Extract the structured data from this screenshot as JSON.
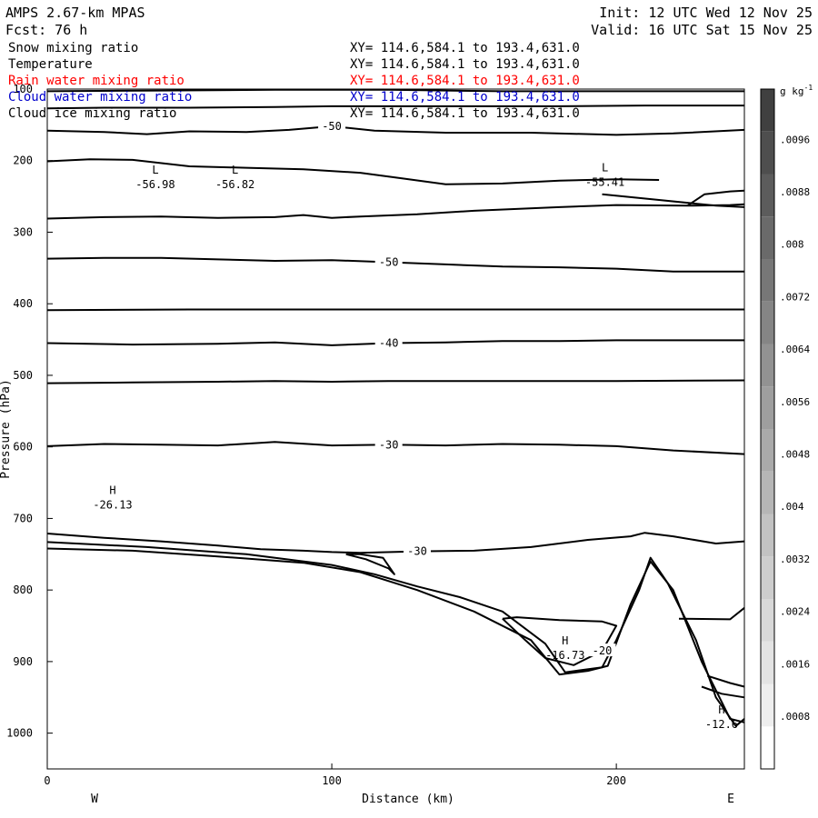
{
  "header": {
    "model": "AMPS 2.67-km MPAS",
    "fcst": "Fcst:   76 h",
    "init": "Init: 12 UTC Wed 12 Nov 25",
    "valid": "Valid: 16 UTC Sat 15 Nov 25"
  },
  "variables": [
    {
      "name": "Snow mixing ratio",
      "xy": "XY= 114.6,584.1 to 193.4,631.0",
      "color": "#000000"
    },
    {
      "name": "Temperature",
      "xy": "XY= 114.6,584.1 to 193.4,631.0",
      "color": "#000000"
    },
    {
      "name": "Rain water mixing ratio",
      "xy": "XY= 114.6,584.1 to 193.4,631.0",
      "color": "#ff0000"
    },
    {
      "name": "Cloud water mixing ratio",
      "xy": "XY= 114.6,584.1 to 193.4,631.0",
      "color": "#0000cc"
    },
    {
      "name": "Cloud ice mixing ratio",
      "xy": "XY= 114.6,584.1 to 193.4,631.0",
      "color": "#000000"
    }
  ],
  "chart_data": {
    "type": "line",
    "xlabel": "Distance (km)",
    "ylabel": "Pressure (hPa)",
    "xlim": [
      0,
      245
    ],
    "ylim": [
      1050,
      100
    ],
    "x_ticks": [
      "0",
      "100",
      "200"
    ],
    "y_ticks": [
      "100",
      "200",
      "300",
      "400",
      "500",
      "600",
      "700",
      "800",
      "900",
      "1000"
    ],
    "x_ends": {
      "left": "W",
      "right": "E"
    },
    "series": [
      {
        "label": "",
        "points": [
          [
            0,
            103
          ],
          [
            40,
            102
          ],
          [
            80,
            101
          ],
          [
            120,
            101
          ],
          [
            160,
            103
          ],
          [
            200,
            103
          ],
          [
            245,
            103
          ]
        ]
      },
      {
        "label": "",
        "points": [
          [
            0,
            127
          ],
          [
            20,
            126
          ],
          [
            50,
            126
          ],
          [
            80,
            125
          ],
          [
            100,
            124
          ],
          [
            120,
            124
          ],
          [
            150,
            124
          ],
          [
            180,
            124
          ],
          [
            210,
            123
          ],
          [
            245,
            123
          ]
        ]
      },
      {
        "label": "-50",
        "points": [
          [
            0,
            158
          ],
          [
            20,
            160
          ],
          [
            35,
            163
          ],
          [
            50,
            159
          ],
          [
            70,
            160
          ],
          [
            85,
            157
          ],
          [
            100,
            152
          ],
          [
            115,
            158
          ],
          [
            140,
            161
          ],
          [
            170,
            161
          ],
          [
            200,
            164
          ],
          [
            220,
            162
          ],
          [
            245,
            157
          ]
        ]
      },
      {
        "label": "",
        "points": [
          [
            0,
            201
          ],
          [
            15,
            198
          ],
          [
            30,
            199
          ],
          [
            50,
            208
          ],
          [
            70,
            210
          ],
          [
            90,
            212
          ],
          [
            110,
            217
          ],
          [
            125,
            225
          ],
          [
            140,
            233
          ],
          [
            160,
            232
          ],
          [
            180,
            228
          ],
          [
            200,
            226
          ],
          [
            215,
            227
          ]
        ]
      },
      {
        "label": "",
        "points": [
          [
            0,
            281
          ],
          [
            20,
            279
          ],
          [
            40,
            278
          ],
          [
            60,
            280
          ],
          [
            80,
            279
          ],
          [
            90,
            276
          ],
          [
            100,
            280
          ],
          [
            110,
            278
          ],
          [
            130,
            275
          ],
          [
            150,
            270
          ],
          [
            180,
            265
          ],
          [
            200,
            262
          ],
          [
            225,
            263
          ],
          [
            240,
            262
          ],
          [
            245,
            261
          ]
        ]
      },
      {
        "label": "",
        "points": [
          [
            195,
            247
          ],
          [
            215,
            255
          ],
          [
            235,
            263
          ],
          [
            245,
            265
          ]
        ]
      },
      {
        "label": "",
        "points": [
          [
            225,
            263
          ],
          [
            231,
            247
          ],
          [
            240,
            243
          ],
          [
            245,
            242
          ]
        ]
      },
      {
        "label": "-50",
        "points": [
          [
            0,
            337
          ],
          [
            20,
            336
          ],
          [
            40,
            336
          ],
          [
            60,
            338
          ],
          [
            80,
            340
          ],
          [
            100,
            339
          ],
          [
            120,
            342
          ],
          [
            140,
            345
          ],
          [
            160,
            348
          ],
          [
            180,
            349
          ],
          [
            200,
            351
          ],
          [
            220,
            355
          ],
          [
            245,
            355
          ]
        ]
      },
      {
        "label": "",
        "points": [
          [
            0,
            409
          ],
          [
            50,
            408
          ],
          [
            100,
            408
          ],
          [
            150,
            408
          ],
          [
            200,
            408
          ],
          [
            245,
            408
          ]
        ]
      },
      {
        "label": "-40",
        "points": [
          [
            0,
            455
          ],
          [
            30,
            457
          ],
          [
            60,
            456
          ],
          [
            80,
            454
          ],
          [
            100,
            458
          ],
          [
            120,
            455
          ],
          [
            140,
            454
          ],
          [
            160,
            452
          ],
          [
            180,
            452
          ],
          [
            200,
            451
          ],
          [
            245,
            451
          ]
        ]
      },
      {
        "label": "",
        "points": [
          [
            0,
            511
          ],
          [
            30,
            510
          ],
          [
            60,
            509
          ],
          [
            80,
            508
          ],
          [
            100,
            509
          ],
          [
            120,
            508
          ],
          [
            140,
            508
          ],
          [
            160,
            508
          ],
          [
            180,
            508
          ],
          [
            200,
            508
          ],
          [
            245,
            507
          ]
        ]
      },
      {
        "label": "-30",
        "points": [
          [
            0,
            599
          ],
          [
            20,
            596
          ],
          [
            40,
            597
          ],
          [
            60,
            598
          ],
          [
            80,
            593
          ],
          [
            100,
            598
          ],
          [
            120,
            597
          ],
          [
            140,
            598
          ],
          [
            160,
            596
          ],
          [
            180,
            597
          ],
          [
            200,
            599
          ],
          [
            220,
            605
          ],
          [
            245,
            610
          ]
        ]
      },
      {
        "label": "-30",
        "points": [
          [
            0,
            721
          ],
          [
            20,
            727
          ],
          [
            40,
            732
          ],
          [
            60,
            738
          ],
          [
            75,
            743
          ],
          [
            90,
            745
          ],
          [
            100,
            747
          ],
          [
            110,
            748
          ],
          [
            130,
            746
          ],
          [
            150,
            745
          ],
          [
            170,
            740
          ],
          [
            190,
            730
          ],
          [
            205,
            725
          ],
          [
            210,
            720
          ],
          [
            220,
            725
          ],
          [
            235,
            735
          ],
          [
            245,
            732
          ]
        ]
      },
      {
        "label": "",
        "points": [
          [
            0,
            742
          ],
          [
            30,
            745
          ],
          [
            60,
            753
          ],
          [
            90,
            762
          ],
          [
            110,
            775
          ],
          [
            130,
            800
          ],
          [
            150,
            830
          ],
          [
            170,
            870
          ],
          [
            180,
            918
          ],
          [
            190,
            913
          ],
          [
            197,
            906
          ],
          [
            205,
            820
          ],
          [
            212,
            760
          ],
          [
            220,
            800
          ],
          [
            230,
            900
          ],
          [
            240,
            980
          ],
          [
            245,
            985
          ]
        ]
      },
      {
        "label": "",
        "points": [
          [
            0,
            733
          ],
          [
            35,
            740
          ],
          [
            70,
            750
          ],
          [
            100,
            765
          ],
          [
            115,
            778
          ],
          [
            130,
            795
          ],
          [
            145,
            810
          ],
          [
            160,
            830
          ],
          [
            175,
            875
          ],
          [
            182,
            915
          ],
          [
            195,
            908
          ],
          [
            200,
            870
          ],
          [
            208,
            800
          ],
          [
            212,
            755
          ],
          [
            218,
            790
          ],
          [
            228,
            870
          ],
          [
            235,
            950
          ],
          [
            242,
            990
          ],
          [
            245,
            980
          ]
        ]
      },
      {
        "label": "",
        "points": [
          [
            105,
            750
          ],
          [
            110,
            750
          ],
          [
            118,
            755
          ],
          [
            122,
            778
          ],
          [
            120,
            770
          ],
          [
            112,
            757
          ],
          [
            105,
            750
          ]
        ]
      },
      {
        "label": "-20",
        "points": [
          [
            160,
            840
          ],
          [
            165,
            838
          ],
          [
            180,
            842
          ],
          [
            195,
            844
          ],
          [
            200,
            850
          ],
          [
            195,
            885
          ],
          [
            185,
            905
          ],
          [
            175,
            895
          ],
          [
            168,
            870
          ],
          [
            160,
            840
          ]
        ]
      },
      {
        "label": "",
        "points": [
          [
            222,
            840
          ],
          [
            240,
            841
          ],
          [
            245,
            825
          ]
        ]
      },
      {
        "label": "",
        "points": [
          [
            232,
            920
          ],
          [
            240,
            930
          ],
          [
            245,
            935
          ]
        ]
      },
      {
        "label": "",
        "points": [
          [
            230,
            935
          ],
          [
            237,
            945
          ],
          [
            245,
            950
          ]
        ]
      }
    ],
    "extrema": [
      {
        "type": "L",
        "value": "-56.98",
        "x": 38,
        "p": 228
      },
      {
        "type": "L",
        "value": "-56.82",
        "x": 66,
        "p": 228
      },
      {
        "type": "L",
        "value": "-55.41",
        "x": 196,
        "p": 225
      },
      {
        "type": "H",
        "value": "-26.13",
        "x": 23,
        "p": 676
      },
      {
        "type": "H",
        "value": "-16.73",
        "x": 182,
        "p": 886
      },
      {
        "type": "H",
        "value": "-12.6",
        "x": 237,
        "p": 983
      }
    ],
    "colorbar": {
      "unit": "g kg",
      "unit_exp": "-1",
      "labels": [
        ".0008",
        ".0016",
        ".0024",
        ".0032",
        ".004",
        ".0048",
        ".0056",
        ".0064",
        ".0072",
        ".008",
        ".0088",
        ".0096"
      ],
      "colors": [
        "#ffffff",
        "#eeeeee",
        "#e3e3e3",
        "#d8d8d8",
        "#cdcdcd",
        "#c2c2c2",
        "#b6b6b6",
        "#aaaaaa",
        "#9e9e9e",
        "#929292",
        "#858585",
        "#777777",
        "#6a6a6a",
        "#5c5c5c",
        "#4e4e4e",
        "#404040"
      ]
    }
  }
}
